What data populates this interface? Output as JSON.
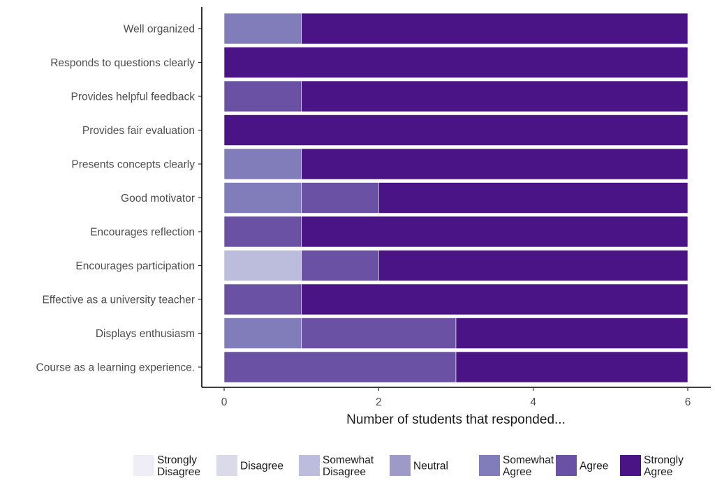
{
  "chart_data": {
    "type": "bar",
    "orientation": "horizontal",
    "stacked": true,
    "title": "",
    "xlabel": "Number of students that responded...",
    "ylabel": "",
    "xlim": [
      0,
      6
    ],
    "xticks": [
      0,
      2,
      4,
      6
    ],
    "grid": false,
    "legend_position": "bottom",
    "categories": [
      "Well organized",
      "Responds to questions clearly",
      "Provides helpful feedback",
      "Provides fair evaluation",
      "Presents concepts clearly",
      "Good motivator",
      "Encourages reflection",
      "Encourages participation",
      "Effective as a university teacher",
      "Displays enthusiasm",
      "Course as a learning experience."
    ],
    "series": [
      {
        "name": "Strongly Disagree",
        "label_lines": [
          "Strongly",
          "Disagree"
        ],
        "color": "#efedf5",
        "values": [
          0,
          0,
          0,
          0,
          0,
          0,
          0,
          0,
          0,
          0,
          0
        ]
      },
      {
        "name": "Disagree",
        "label_lines": [
          "Disagree"
        ],
        "color": "#dadaeb",
        "values": [
          0,
          0,
          0,
          0,
          0,
          0,
          0,
          0,
          0,
          0,
          0
        ]
      },
      {
        "name": "Somewhat Disagree",
        "label_lines": [
          "Somewhat",
          "Disagree"
        ],
        "color": "#bcbddc",
        "values": [
          0,
          0,
          0,
          0,
          0,
          0,
          0,
          1,
          0,
          0,
          0
        ]
      },
      {
        "name": "Neutral",
        "label_lines": [
          "Neutral"
        ],
        "color": "#9e9ac8",
        "values": [
          0,
          0,
          0,
          0,
          0,
          0,
          0,
          0,
          0,
          0,
          0
        ]
      },
      {
        "name": "Somewhat Agree",
        "label_lines": [
          "Somewhat",
          "Agree"
        ],
        "color": "#807dba",
        "values": [
          1,
          0,
          0,
          0,
          1,
          1,
          0,
          0,
          0,
          1,
          0
        ]
      },
      {
        "name": "Agree",
        "label_lines": [
          "Agree"
        ],
        "color": "#6a51a3",
        "values": [
          0,
          0,
          1,
          0,
          0,
          1,
          1,
          1,
          1,
          2,
          3
        ]
      },
      {
        "name": "Strongly Agree",
        "label_lines": [
          "Strongly",
          "Agree"
        ],
        "color": "#4a1486",
        "values": [
          5,
          6,
          5,
          6,
          5,
          4,
          5,
          4,
          5,
          3,
          3
        ]
      }
    ]
  }
}
